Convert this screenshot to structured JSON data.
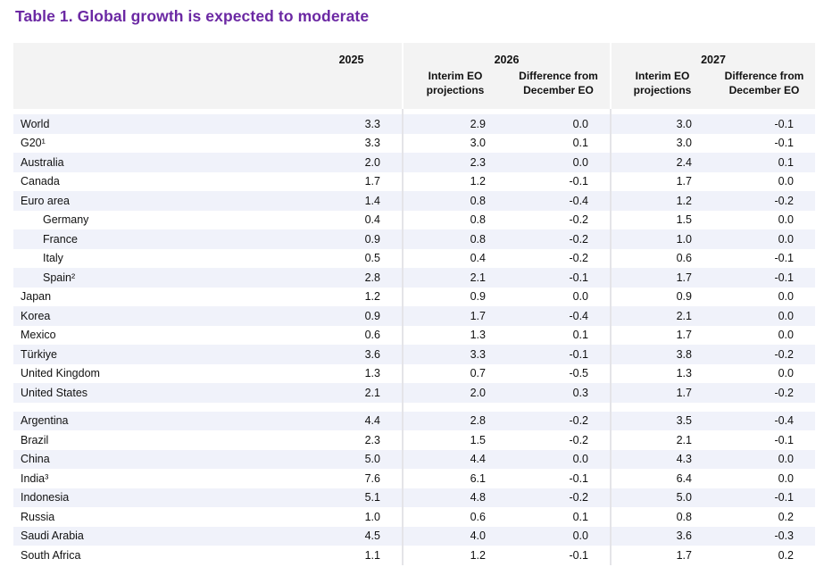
{
  "title": "Table 1. Global growth is expected to moderate",
  "colors": {
    "title_purple": "#6b28a3",
    "header_band_gray": "#f3f3f3",
    "row_stripe": "#f0f2fa",
    "divider": "#e4e4e8",
    "text": "#111111"
  },
  "table": {
    "year_2025": "2025",
    "groups": [
      {
        "year": "2026",
        "sub_headers": [
          "Interim EO projections",
          "Difference from December EO"
        ]
      },
      {
        "year": "2027",
        "sub_headers": [
          "Interim EO projections",
          "Difference from December EO"
        ]
      }
    ],
    "sections": [
      {
        "rows": [
          {
            "label": "World",
            "indent": false,
            "values": [
              "3.3",
              "2.9",
              "0.0",
              "3.0",
              "-0.1"
            ]
          },
          {
            "label": "G20¹",
            "indent": false,
            "values": [
              "3.3",
              "3.0",
              "0.1",
              "3.0",
              "-0.1"
            ]
          },
          {
            "label": "Australia",
            "indent": false,
            "values": [
              "2.0",
              "2.3",
              "0.0",
              "2.4",
              "0.1"
            ]
          },
          {
            "label": "Canada",
            "indent": false,
            "values": [
              "1.7",
              "1.2",
              "-0.1",
              "1.7",
              "0.0"
            ]
          },
          {
            "label": "Euro area",
            "indent": false,
            "values": [
              "1.4",
              "0.8",
              "-0.4",
              "1.2",
              "-0.2"
            ]
          },
          {
            "label": "Germany",
            "indent": true,
            "values": [
              "0.4",
              "0.8",
              "-0.2",
              "1.5",
              "0.0"
            ]
          },
          {
            "label": "France",
            "indent": true,
            "values": [
              "0.9",
              "0.8",
              "-0.2",
              "1.0",
              "0.0"
            ]
          },
          {
            "label": "Italy",
            "indent": true,
            "values": [
              "0.5",
              "0.4",
              "-0.2",
              "0.6",
              "-0.1"
            ]
          },
          {
            "label": "Spain²",
            "indent": true,
            "values": [
              "2.8",
              "2.1",
              "-0.1",
              "1.7",
              "-0.1"
            ]
          },
          {
            "label": "Japan",
            "indent": false,
            "values": [
              "1.2",
              "0.9",
              "0.0",
              "0.9",
              "0.0"
            ]
          },
          {
            "label": "Korea",
            "indent": false,
            "values": [
              "0.9",
              "1.7",
              "-0.4",
              "2.1",
              "0.0"
            ]
          },
          {
            "label": "Mexico",
            "indent": false,
            "values": [
              "0.6",
              "1.3",
              "0.1",
              "1.7",
              "0.0"
            ]
          },
          {
            "label": "Türkiye",
            "indent": false,
            "values": [
              "3.6",
              "3.3",
              "-0.1",
              "3.8",
              "-0.2"
            ]
          },
          {
            "label": "United Kingdom",
            "indent": false,
            "values": [
              "1.3",
              "0.7",
              "-0.5",
              "1.3",
              "0.0"
            ]
          },
          {
            "label": "United States",
            "indent": false,
            "values": [
              "2.1",
              "2.0",
              "0.3",
              "1.7",
              "-0.2"
            ]
          }
        ]
      },
      {
        "rows": [
          {
            "label": "Argentina",
            "indent": false,
            "values": [
              "4.4",
              "2.8",
              "-0.2",
              "3.5",
              "-0.4"
            ]
          },
          {
            "label": "Brazil",
            "indent": false,
            "values": [
              "2.3",
              "1.5",
              "-0.2",
              "2.1",
              "-0.1"
            ]
          },
          {
            "label": "China",
            "indent": false,
            "values": [
              "5.0",
              "4.4",
              "0.0",
              "4.3",
              "0.0"
            ]
          },
          {
            "label": "India³",
            "indent": false,
            "values": [
              "7.6",
              "6.1",
              "-0.1",
              "6.4",
              "0.0"
            ]
          },
          {
            "label": "Indonesia",
            "indent": false,
            "values": [
              "5.1",
              "4.8",
              "-0.2",
              "5.0",
              "-0.1"
            ]
          },
          {
            "label": "Russia",
            "indent": false,
            "values": [
              "1.0",
              "0.6",
              "0.1",
              "0.8",
              "0.2"
            ]
          },
          {
            "label": "Saudi Arabia",
            "indent": false,
            "values": [
              "4.5",
              "4.0",
              "0.0",
              "3.6",
              "-0.3"
            ]
          },
          {
            "label": "South Africa",
            "indent": false,
            "values": [
              "1.1",
              "1.2",
              "-0.1",
              "1.7",
              "0.2"
            ]
          }
        ]
      }
    ]
  }
}
